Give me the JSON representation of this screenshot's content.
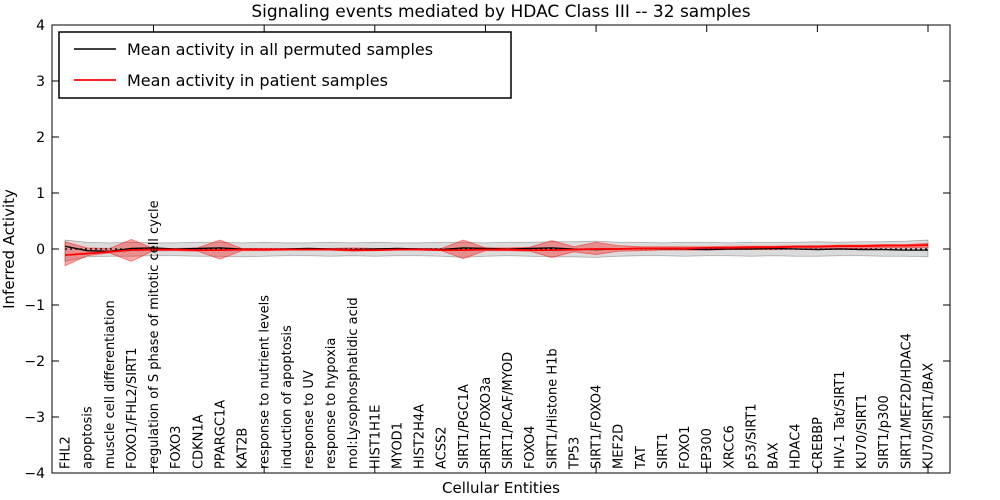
{
  "chart_data": {
    "type": "line",
    "title": "Signaling events mediated by HDAC Class III -- 32 samples",
    "xlabel": "Cellular Entities",
    "ylabel": "Inferred Activity",
    "ylim": [
      -4,
      4
    ],
    "yticks": [
      4,
      3,
      2,
      1,
      0,
      -1,
      -2,
      -3,
      -4
    ],
    "ytick_labels": [
      "4",
      "3",
      "2",
      "1",
      "0",
      "−1",
      "−2",
      "−3",
      "−4"
    ],
    "x_major_tick_every": 5,
    "grid": false,
    "legend_position": "upper left",
    "categories": [
      "FHL2",
      "apoptosis",
      "muscle cell differentiation",
      "FOXO1/FHL2/SIRT1",
      "regulation of S phase of mitotic cell cycle",
      "FOXO3",
      "CDKN1A",
      "PPARGC1A",
      "KAT2B",
      "response to nutrient levels",
      "induction of apoptosis",
      "response to UV",
      "response to hypoxia",
      "mol:Lysophosphatidic acid",
      "HIST1H1E",
      "MYOD1",
      "HIST2H4A",
      "ACSS2",
      "SIRT1/PGC1A",
      "SIRT1/FOXO3a",
      "SIRT1/PCAF/MYOD",
      "FOXO4",
      "SIRT1/Histone H1b",
      "TP53",
      "SIRT1/FOXO4",
      "MEF2D",
      "TAT",
      "SIRT1",
      "FOXO1",
      "EP300",
      "XRCC6",
      "p53/SIRT1",
      "BAX",
      "HDAC4",
      "CREBBP",
      "HIV-1 Tat/SIRT1",
      "KU70/SIRT1",
      "SIRT1/p300",
      "SIRT1/MEF2D/HDAC4",
      "KU70/SIRT1/BAX"
    ],
    "series": [
      {
        "name": "Mean activity in all permuted samples",
        "color": "#000000",
        "values": [
          0.05,
          -0.03,
          -0.04,
          0.01,
          0.02,
          0.0,
          0.01,
          0.02,
          0.0,
          -0.01,
          0.0,
          0.01,
          0.0,
          -0.01,
          0.0,
          0.01,
          0.0,
          -0.01,
          0.02,
          0.01,
          0.0,
          0.01,
          0.02,
          0.0,
          -0.01,
          0.0,
          0.01,
          0.0,
          0.0,
          -0.01,
          0.0,
          0.0,
          0.01,
          0.0,
          -0.01,
          0.0,
          -0.01,
          -0.01,
          -0.02,
          -0.02
        ]
      },
      {
        "name": "Mean activity in patient samples",
        "color": "#ff0000",
        "values": [
          -0.11,
          -0.08,
          -0.05,
          -0.02,
          -0.01,
          -0.01,
          -0.02,
          -0.02,
          -0.01,
          -0.01,
          -0.01,
          -0.01,
          -0.01,
          -0.02,
          -0.02,
          -0.01,
          -0.01,
          -0.02,
          -0.02,
          -0.01,
          -0.01,
          -0.02,
          -0.02,
          -0.01,
          0.0,
          0.0,
          0.01,
          0.01,
          0.01,
          0.02,
          0.02,
          0.03,
          0.03,
          0.04,
          0.04,
          0.05,
          0.05,
          0.06,
          0.06,
          0.07
        ]
      }
    ],
    "bands": [
      {
        "name": "permuted-confidence-band",
        "color": "#000000",
        "opacity": 0.14,
        "upper": [
          0.16,
          0.12,
          0.11,
          0.12,
          0.11,
          0.11,
          0.12,
          0.12,
          0.11,
          0.12,
          0.11,
          0.11,
          0.12,
          0.11,
          0.12,
          0.11,
          0.11,
          0.12,
          0.12,
          0.11,
          0.12,
          0.12,
          0.13,
          0.13,
          0.14,
          0.12,
          0.12,
          0.11,
          0.12,
          0.12,
          0.11,
          0.12,
          0.12,
          0.12,
          0.13,
          0.12,
          0.13,
          0.13,
          0.14,
          0.16
        ],
        "lower": [
          -0.22,
          -0.14,
          -0.13,
          -0.13,
          -0.12,
          -0.12,
          -0.13,
          -0.13,
          -0.14,
          -0.13,
          -0.12,
          -0.12,
          -0.13,
          -0.12,
          -0.13,
          -0.12,
          -0.12,
          -0.13,
          -0.15,
          -0.13,
          -0.12,
          -0.13,
          -0.14,
          -0.14,
          -0.15,
          -0.13,
          -0.12,
          -0.12,
          -0.13,
          -0.12,
          -0.12,
          -0.13,
          -0.12,
          -0.13,
          -0.13,
          -0.12,
          -0.12,
          -0.13,
          -0.13,
          -0.14
        ]
      },
      {
        "name": "patient-confidence-band",
        "color": "#ff0000",
        "opacity": 0.35,
        "upper": [
          0.13,
          0.02,
          0.01,
          0.17,
          0.01,
          0.01,
          0.02,
          0.16,
          0.01,
          0.01,
          0.01,
          0.01,
          0.01,
          0.02,
          0.01,
          0.01,
          0.01,
          0.01,
          0.16,
          0.02,
          0.02,
          0.03,
          0.15,
          0.04,
          0.12,
          0.06,
          0.04,
          0.04,
          0.04,
          0.04,
          0.05,
          0.05,
          0.05,
          0.06,
          0.06,
          0.07,
          0.07,
          0.08,
          0.08,
          0.1
        ],
        "lower": [
          -0.3,
          -0.12,
          -0.07,
          -0.22,
          -0.03,
          -0.03,
          -0.04,
          -0.18,
          -0.03,
          -0.03,
          -0.02,
          -0.02,
          -0.02,
          -0.04,
          -0.03,
          -0.02,
          -0.02,
          -0.03,
          -0.17,
          -0.03,
          -0.03,
          -0.04,
          -0.15,
          -0.05,
          -0.1,
          -0.04,
          -0.03,
          -0.02,
          -0.02,
          -0.02,
          -0.01,
          -0.01,
          -0.01,
          0.0,
          0.0,
          0.01,
          0.01,
          0.02,
          0.02,
          0.02
        ]
      }
    ],
    "zero_line": 0
  }
}
